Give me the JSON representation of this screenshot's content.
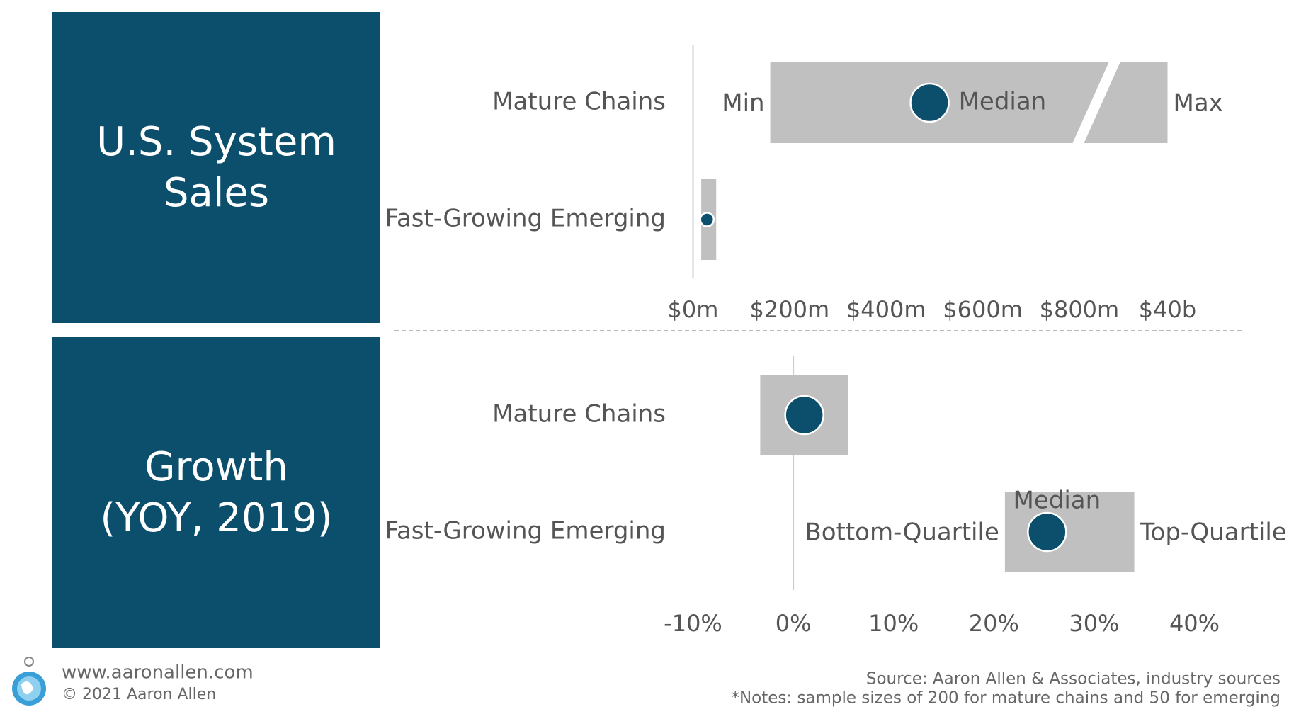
{
  "chart_data": [
    {
      "type": "range",
      "title": "U.S. System\nSales",
      "categories": [
        "Mature Chains",
        "Fast-Growing Emerging"
      ],
      "series": [
        {
          "name": "Min",
          "color": "#c0c0c0",
          "values": [
            160,
            17
          ]
        },
        {
          "name": "Median",
          "color": "#0b4f6c",
          "values": [
            490,
            29
          ]
        },
        {
          "name": "Max",
          "color": "#c0c0c0",
          "values": [
            40000,
            48
          ]
        }
      ],
      "xlim": [
        0,
        40500
      ],
      "xbreak": [
        850,
        39500
      ],
      "xticks": [
        {
          "value": 0,
          "label": "$0m"
        },
        {
          "value": 200,
          "label": "$200m"
        },
        {
          "value": 400,
          "label": "$400m"
        },
        {
          "value": 600,
          "label": "$600m"
        },
        {
          "value": 800,
          "label": "$800m"
        },
        {
          "value": 40000,
          "label": "$40b"
        }
      ],
      "annotate_category": 0,
      "median_label": "right"
    },
    {
      "type": "range",
      "title": "Growth\n(YOY, 2019)",
      "categories": [
        "Mature Chains",
        "Fast-Growing Emerging"
      ],
      "series": [
        {
          "name": "Bottom-Quartile",
          "color": "#c0c0c0",
          "values": [
            -3.3,
            21.1
          ]
        },
        {
          "name": "Median",
          "color": "#0b4f6c",
          "values": [
            1.1,
            25.3
          ]
        },
        {
          "name": "Top-Quartile",
          "color": "#c0c0c0",
          "values": [
            5.5,
            34.0
          ]
        }
      ],
      "xlim": [
        -10,
        40
      ],
      "xticks": [
        {
          "value": -10,
          "label": "-10%"
        },
        {
          "value": 0,
          "label": "0%"
        },
        {
          "value": 10,
          "label": "10%"
        },
        {
          "value": 20,
          "label": "20%"
        },
        {
          "value": 30,
          "label": "30%"
        },
        {
          "value": 40,
          "label": "40%"
        }
      ],
      "annotate_category": 1,
      "median_label": "above"
    }
  ],
  "footer": {
    "website": "www.aaronallen.com",
    "copyright": "© 2021 Aaron Allen",
    "source": "Source: Aaron Allen & Associates, industry sources",
    "notes": "*Notes: sample sizes of 200 for mature chains and 50 for emerging"
  }
}
